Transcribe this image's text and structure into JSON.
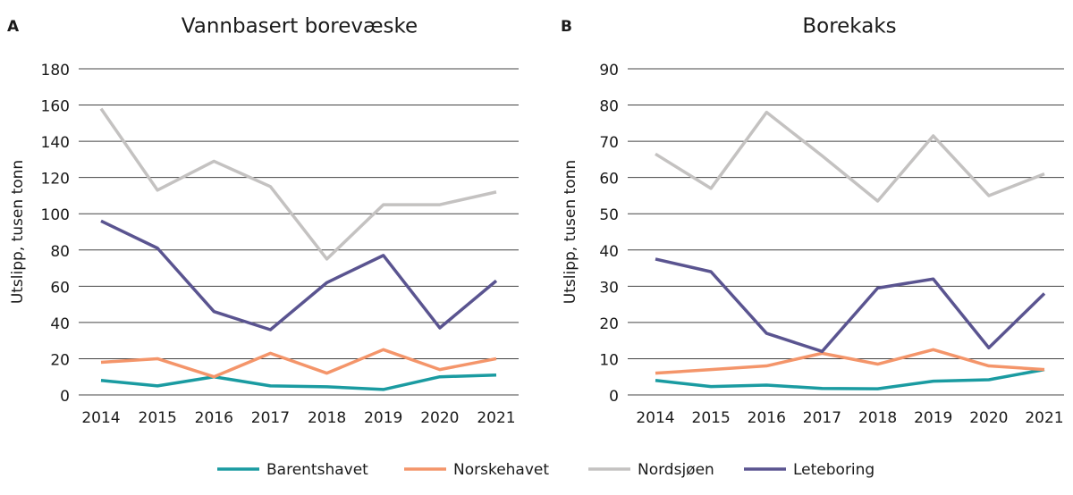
{
  "chart_data": [
    {
      "type": "line",
      "panel": "A",
      "title": "Vannbasert borevæske",
      "y_label": "Utslipp, tusen tonn",
      "categories": [
        "2014",
        "2015",
        "2016",
        "2017",
        "2018",
        "2019",
        "2020",
        "2021"
      ],
      "ylim": [
        0,
        180
      ],
      "yticks": [
        0,
        20,
        40,
        60,
        80,
        100,
        120,
        140,
        160,
        180
      ],
      "grid": true,
      "series": [
        {
          "name": "Barentshavet",
          "color": "#1a9ba1",
          "values": [
            8,
            5,
            10,
            5,
            4.5,
            3,
            10,
            11
          ]
        },
        {
          "name": "Norskehavet",
          "color": "#f4956a",
          "values": [
            18,
            20,
            10,
            23,
            12,
            25,
            14,
            20
          ]
        },
        {
          "name": "Nordsjøen",
          "color": "#c4c2c1",
          "values": [
            158,
            113,
            129,
            115,
            75,
            105,
            105,
            112
          ]
        },
        {
          "name": "Leteboring",
          "color": "#5a5490",
          "values": [
            96,
            81,
            46,
            36,
            62,
            77,
            37,
            63
          ]
        }
      ]
    },
    {
      "type": "line",
      "panel": "B",
      "title": "Borekaks",
      "y_label": "Utslipp, tusen tonn",
      "categories": [
        "2014",
        "2015",
        "2016",
        "2017",
        "2018",
        "2019",
        "2020",
        "2021"
      ],
      "ylim": [
        0,
        90
      ],
      "yticks": [
        0,
        10,
        20,
        30,
        40,
        50,
        60,
        70,
        80,
        90
      ],
      "grid": true,
      "series": [
        {
          "name": "Barentshavet",
          "color": "#1a9ba1",
          "values": [
            4,
            2.3,
            2.7,
            1.8,
            1.7,
            3.8,
            4.2,
            7
          ]
        },
        {
          "name": "Norskehavet",
          "color": "#f4956a",
          "values": [
            6,
            7,
            8,
            11.5,
            8.5,
            12.5,
            8,
            7
          ]
        },
        {
          "name": "Nordsjøen",
          "color": "#c4c2c1",
          "values": [
            66.5,
            57,
            78,
            66,
            53.5,
            71.5,
            55,
            61
          ]
        },
        {
          "name": "Leteboring",
          "color": "#5a5490",
          "values": [
            37.5,
            34,
            17,
            12,
            29.5,
            32,
            13,
            28
          ]
        }
      ]
    }
  ]
}
